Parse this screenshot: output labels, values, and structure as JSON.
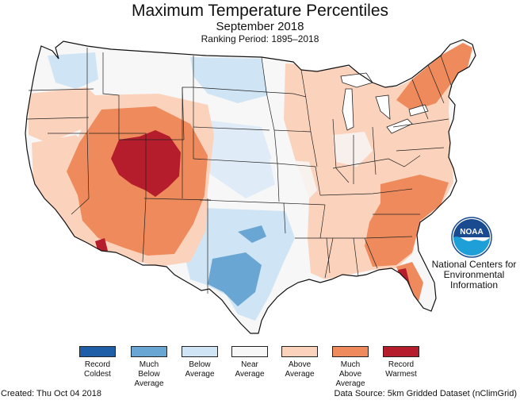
{
  "title": "Maximum Temperature Percentiles",
  "subtitle": "September 2018",
  "ranking_period": "Ranking Period: 1895–2018",
  "legend": [
    {
      "label": "Record\nColdest",
      "color": "#1f5fa8"
    },
    {
      "label": "Much\nBelow\nAverage",
      "color": "#6aa6d4"
    },
    {
      "label": "Below\nAverage",
      "color": "#cfe4f4"
    },
    {
      "label": "Near\nAverage",
      "color": "#f7f7f7"
    },
    {
      "label": "Above\nAverage",
      "color": "#fbd3bd"
    },
    {
      "label": "Much\nAbove\nAverage",
      "color": "#ee8a5b"
    },
    {
      "label": "Record\nWarmest",
      "color": "#b51c2c"
    }
  ],
  "org_name": "National Centers for\nEnvironmental\nInformation",
  "logo_text": "NOAA",
  "created": "Created: Thu Oct 04 2018",
  "data_source": "Data Source: 5km Gridded Dataset (nClimGrid)"
}
